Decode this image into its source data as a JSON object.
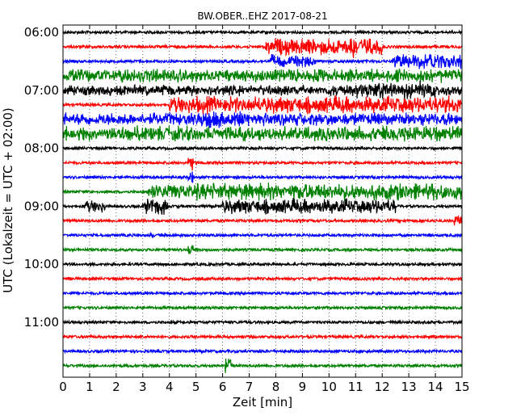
{
  "chart_data": {
    "type": "line",
    "title": "BW.OBER..EHZ 2017-08-21",
    "xlabel": "Zeit  [min]",
    "ylabel": "UTC (Lokalzeit = UTC + 02:00)",
    "xlim": [
      0,
      15
    ],
    "x_ticks": [
      "0",
      "1",
      "2",
      "3",
      "4",
      "5",
      "6",
      "7",
      "8",
      "9",
      "10",
      "11",
      "12",
      "13",
      "14",
      "15"
    ],
    "y_ticks": [
      "06:00",
      "07:00",
      "08:00",
      "09:00",
      "10:00",
      "11:00"
    ],
    "grid": "vertical dotted",
    "trace_start": "06:00",
    "trace_interval_minutes": 15,
    "trace_colors": [
      "#000000",
      "#ff0000",
      "#0000ff",
      "#008000"
    ],
    "series": [
      {
        "start": "06:00",
        "color": "#000000",
        "amplitude": 1.0,
        "bursts": []
      },
      {
        "start": "06:15",
        "color": "#ff0000",
        "amplitude": 1.0,
        "bursts": [
          {
            "from": 7.6,
            "to": 12.0,
            "amp": 4.0
          },
          {
            "from": 10.8,
            "to": 11.0,
            "amp": 8.0
          }
        ]
      },
      {
        "start": "06:30",
        "color": "#0000ff",
        "amplitude": 1.0,
        "bursts": [
          {
            "from": 7.8,
            "to": 9.5,
            "amp": 3.0
          },
          {
            "from": 12.4,
            "to": 15.0,
            "amp": 3.5
          }
        ]
      },
      {
        "start": "06:45",
        "color": "#008000",
        "amplitude": 1.5,
        "bursts": [
          {
            "from": 0.0,
            "to": 15.0,
            "amp": 3.0
          }
        ]
      },
      {
        "start": "07:00",
        "color": "#000000",
        "amplitude": 1.5,
        "bursts": [
          {
            "from": 0.0,
            "to": 15.0,
            "amp": 2.5
          },
          {
            "from": 11.0,
            "to": 14.0,
            "amp": 4.0
          }
        ]
      },
      {
        "start": "07:15",
        "color": "#ff0000",
        "amplitude": 1.0,
        "bursts": [
          {
            "from": 4.0,
            "to": 15.0,
            "amp": 4.0
          }
        ]
      },
      {
        "start": "07:30",
        "color": "#0000ff",
        "amplitude": 1.0,
        "bursts": [
          {
            "from": 0.0,
            "to": 15.0,
            "amp": 3.0
          },
          {
            "from": 5.0,
            "to": 7.0,
            "amp": 4.0
          }
        ]
      },
      {
        "start": "07:45",
        "color": "#008000",
        "amplitude": 1.0,
        "bursts": [
          {
            "from": 0.0,
            "to": 15.0,
            "amp": 3.5
          }
        ]
      },
      {
        "start": "08:00",
        "color": "#000000",
        "amplitude": 1.0,
        "bursts": []
      },
      {
        "start": "08:15",
        "color": "#ff0000",
        "amplitude": 1.0,
        "bursts": [
          {
            "from": 4.7,
            "to": 4.9,
            "amp": 4.0
          }
        ]
      },
      {
        "start": "08:30",
        "color": "#0000ff",
        "amplitude": 1.0,
        "bursts": [
          {
            "from": 4.7,
            "to": 4.9,
            "amp": 3.0
          }
        ]
      },
      {
        "start": "08:45",
        "color": "#008000",
        "amplitude": 1.0,
        "bursts": [
          {
            "from": 3.2,
            "to": 15.0,
            "amp": 4.0
          }
        ]
      },
      {
        "start": "09:00",
        "color": "#000000",
        "amplitude": 1.0,
        "bursts": [
          {
            "from": 0.8,
            "to": 1.6,
            "amp": 3.0
          },
          {
            "from": 3.0,
            "to": 4.0,
            "amp": 4.0
          },
          {
            "from": 6.0,
            "to": 12.5,
            "amp": 3.5
          }
        ]
      },
      {
        "start": "09:15",
        "color": "#ff0000",
        "amplitude": 1.0,
        "bursts": [
          {
            "from": 14.7,
            "to": 15.0,
            "amp": 3.0
          }
        ]
      },
      {
        "start": "09:30",
        "color": "#0000ff",
        "amplitude": 1.0,
        "bursts": [
          {
            "from": 3.2,
            "to": 3.4,
            "amp": 1.5
          }
        ]
      },
      {
        "start": "09:45",
        "color": "#008000",
        "amplitude": 1.0,
        "bursts": [
          {
            "from": 4.7,
            "to": 4.9,
            "amp": 4.0
          }
        ]
      },
      {
        "start": "10:00",
        "color": "#000000",
        "amplitude": 1.0,
        "bursts": []
      },
      {
        "start": "10:15",
        "color": "#ff0000",
        "amplitude": 1.0,
        "bursts": []
      },
      {
        "start": "10:30",
        "color": "#0000ff",
        "amplitude": 1.0,
        "bursts": []
      },
      {
        "start": "10:45",
        "color": "#008000",
        "amplitude": 1.0,
        "bursts": []
      },
      {
        "start": "11:00",
        "color": "#000000",
        "amplitude": 1.0,
        "bursts": []
      },
      {
        "start": "11:15",
        "color": "#ff0000",
        "amplitude": 1.0,
        "bursts": []
      },
      {
        "start": "11:30",
        "color": "#0000ff",
        "amplitude": 1.0,
        "bursts": []
      },
      {
        "start": "11:45",
        "color": "#008000",
        "amplitude": 1.0,
        "bursts": [
          {
            "from": 6.1,
            "to": 6.3,
            "amp": 5.0
          }
        ]
      }
    ]
  }
}
